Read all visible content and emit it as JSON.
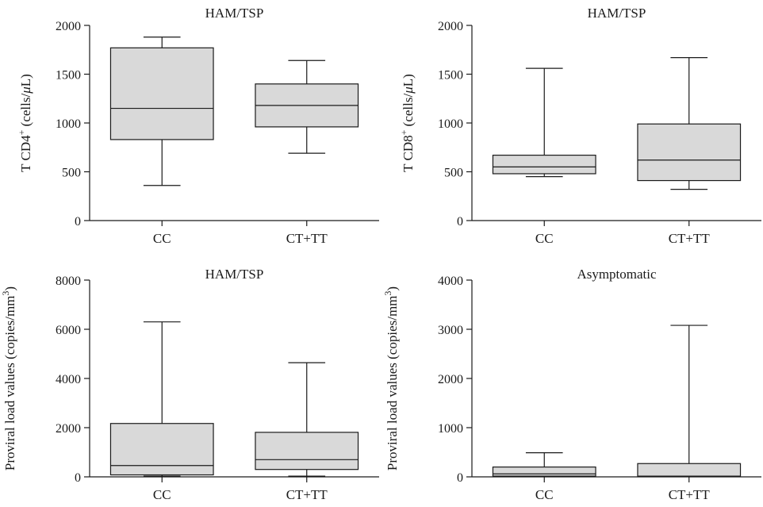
{
  "figure": {
    "box_fill": "#d9d9d9",
    "line_color": "#1a1a1a"
  },
  "chart_data": [
    {
      "type": "box",
      "title": "HAM/TSP",
      "ylabel": "T CD4⁺ (cells/μL)",
      "ylabel_parts": {
        "prefix": "T CD4",
        "sup": "+",
        "mid": " (cells/",
        "italic": "μ",
        "suffix": "L)"
      },
      "ylim": [
        0,
        2000
      ],
      "yticks": [
        0,
        500,
        1000,
        1500,
        2000
      ],
      "categories": [
        "CC",
        "CT+TT"
      ],
      "boxes": [
        {
          "category": "CC",
          "min": 360,
          "q1": 830,
          "median": 1150,
          "q3": 1770,
          "max": 1880
        },
        {
          "category": "CT+TT",
          "min": 690,
          "q1": 960,
          "median": 1180,
          "q3": 1400,
          "max": 1640
        }
      ]
    },
    {
      "type": "box",
      "title": "HAM/TSP",
      "ylabel": "T CD8⁺ (cells/μL)",
      "ylabel_parts": {
        "prefix": "T CD8",
        "sup": "+",
        "mid": " (cells/",
        "italic": "μ",
        "suffix": "L)"
      },
      "ylim": [
        0,
        2000
      ],
      "yticks": [
        0,
        500,
        1000,
        1500,
        2000
      ],
      "categories": [
        "CC",
        "CT+TT"
      ],
      "boxes": [
        {
          "category": "CC",
          "min": 450,
          "q1": 480,
          "median": 550,
          "q3": 670,
          "max": 1560
        },
        {
          "category": "CT+TT",
          "min": 320,
          "q1": 410,
          "median": 620,
          "q3": 990,
          "max": 1670
        }
      ]
    },
    {
      "type": "box",
      "title": "HAM/TSP",
      "ylabel": "Proviral load values (copies/mm³)",
      "ylabel_parts": {
        "prefix": "Proviral load values (copies/mm",
        "sup": "3",
        "mid": ")",
        "italic": "",
        "suffix": ""
      },
      "ylim": [
        0,
        8000
      ],
      "yticks": [
        0,
        2000,
        4000,
        6000,
        8000
      ],
      "categories": [
        "CC",
        "CT+TT"
      ],
      "boxes": [
        {
          "category": "CC",
          "min": 30,
          "q1": 80,
          "median": 460,
          "q3": 2170,
          "max": 6300
        },
        {
          "category": "CT+TT",
          "min": 30,
          "q1": 300,
          "median": 700,
          "q3": 1810,
          "max": 4640
        }
      ]
    },
    {
      "type": "box",
      "title": "Asymptomatic",
      "ylabel": "Proviral load values (copies/mm³)",
      "ylabel_parts": {
        "prefix": "Proviral load values (copies/mm",
        "sup": "3",
        "mid": ")",
        "italic": "",
        "suffix": ""
      },
      "ylim": [
        0,
        4000
      ],
      "yticks": [
        0,
        1000,
        2000,
        3000,
        4000
      ],
      "categories": [
        "CC",
        "CT+TT"
      ],
      "boxes": [
        {
          "category": "CC",
          "min": 5,
          "q1": 15,
          "median": 60,
          "q3": 200,
          "max": 490
        },
        {
          "category": "CT+TT",
          "min": 2,
          "q1": 5,
          "median": 15,
          "q3": 270,
          "max": 3080
        }
      ]
    }
  ]
}
